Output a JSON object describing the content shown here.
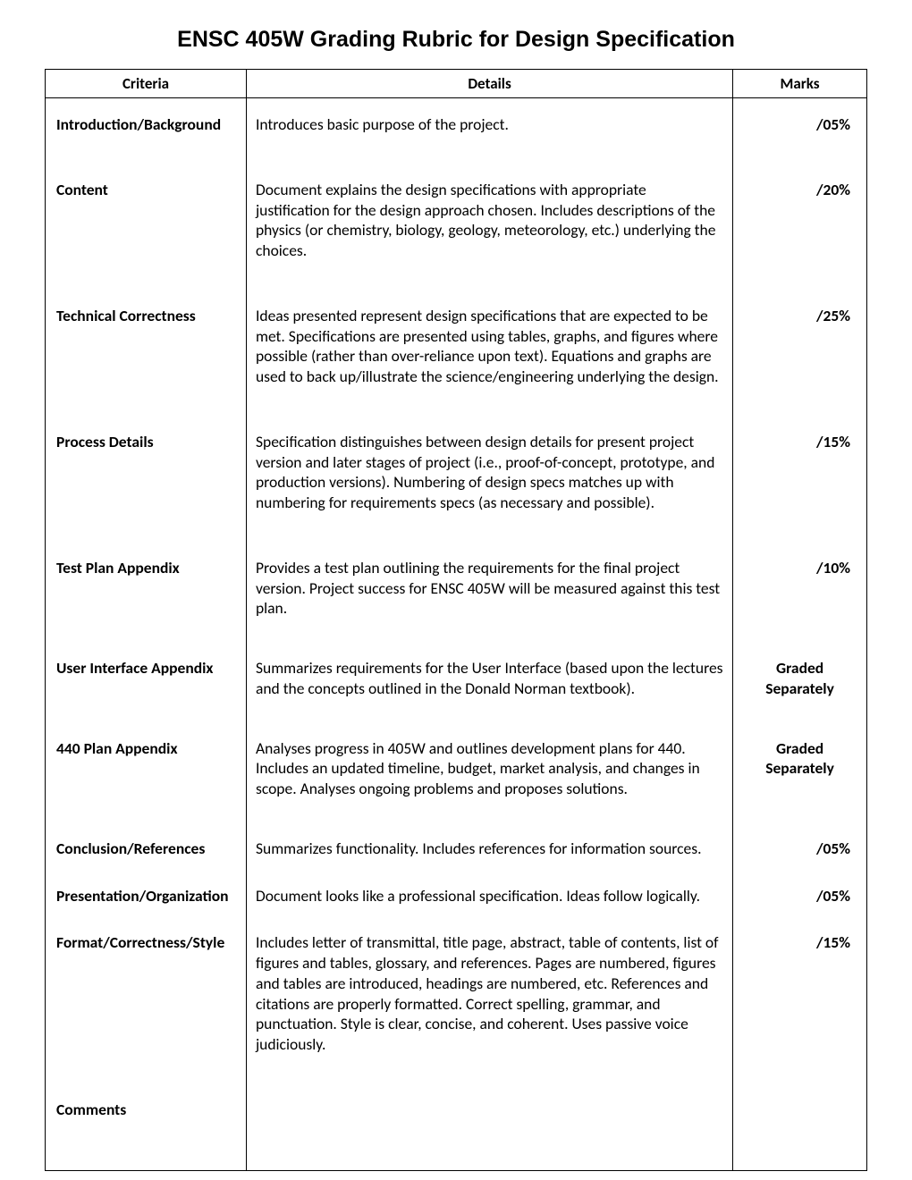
{
  "page_title": "ENSC 405W Grading Rubric for Design Specification",
  "headers": {
    "criteria": "Criteria",
    "details": "Details",
    "marks": "Marks"
  },
  "rows": [
    {
      "criteria": "Introduction/Background",
      "details": "Introduces basic purpose of the project.",
      "marks": "/05%",
      "marks_align": "right"
    },
    {
      "criteria": "Content",
      "details": "Document explains the design specifications with appropriate justification for the design approach chosen. Includes descriptions of the physics (or chemistry, biology, geology, meteorology, etc.) underlying the choices.",
      "marks": "/20%",
      "marks_align": "right"
    },
    {
      "criteria": "Technical Correctness",
      "details": "Ideas presented represent design specifications that are expected to be met. Specifications are presented using tables, graphs, and figures where possible (rather than over-reliance upon text). Equations and graphs are used to back up/illustrate the science/engineering underlying the design.",
      "marks": "/25%",
      "marks_align": "right"
    },
    {
      "criteria": "Process Details",
      "details": "Specification distinguishes between design details for present project version and later stages of project (i.e., proof-of-concept, prototype, and production versions). Numbering of design specs matches up with numbering for requirements specs (as necessary and possible).",
      "marks": "/15%",
      "marks_align": "right"
    },
    {
      "criteria": "Test Plan Appendix",
      "details": "Provides a test plan outlining the requirements for the final project version. Project success for ENSC 405W will be measured against this test plan.",
      "marks": "/10%",
      "marks_align": "right"
    },
    {
      "criteria": "User Interface Appendix",
      "details": "Summarizes requirements for the User Interface (based upon the lectures and the concepts outlined in the Donald Norman textbook).",
      "marks": "Graded Separately",
      "marks_align": "center"
    },
    {
      "criteria": "440 Plan Appendix",
      "details": "Analyses progress in 405W and outlines development plans for 440. Includes an updated timeline, budget, market analysis, and changes in scope. Analyses ongoing problems and proposes solutions.",
      "marks": "Graded Separately",
      "marks_align": "center"
    },
    {
      "criteria": "Conclusion/References",
      "details": "Summarizes functionality. Includes references for information sources.",
      "marks": "/05%",
      "marks_align": "right"
    },
    {
      "criteria": "Presentation/Organization",
      "details": "Document looks like a professional specification. Ideas follow logically.",
      "marks": "/05%",
      "marks_align": "right"
    },
    {
      "criteria": "Format/Correctness/Style",
      "details": "Includes letter of transmittal, title page, abstract, table of contents, list of figures and tables, glossary, and references. Pages are numbered, figures and tables are introduced, headings are numbered, etc. References and citations are properly formatted. Correct spelling, grammar, and punctuation. Style is clear, concise, and coherent. Uses passive voice judiciously.",
      "marks": "/15%",
      "marks_align": "right"
    },
    {
      "criteria": "Comments",
      "details": "",
      "marks": "",
      "marks_align": "right"
    }
  ]
}
